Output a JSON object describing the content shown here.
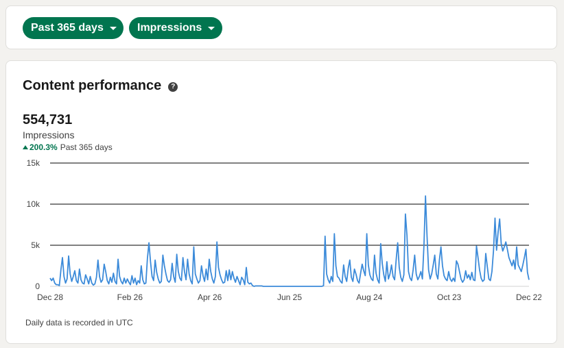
{
  "filters": {
    "range_label": "Past 365 days",
    "metric_label": "Impressions"
  },
  "card": {
    "title": "Content performance",
    "help_icon": "question-circle-icon",
    "total": "554,731",
    "metric": "Impressions",
    "change_pct": "200.3%",
    "change_period": "Past 365 days",
    "footnote": "Daily data is recorded in UTC"
  },
  "colors": {
    "accent": "#01754f",
    "line": "#3b8ad9",
    "grid": "#000000"
  },
  "chart_data": {
    "type": "line",
    "title": "",
    "xlabel": "",
    "ylabel": "",
    "ylim": [
      0,
      15000
    ],
    "yticks": [
      0,
      5000,
      10000,
      15000
    ],
    "ytick_labels": [
      "0",
      "5k",
      "10k",
      "15k"
    ],
    "xtick_labels": [
      "Dec 28",
      "Feb 26",
      "Apr 26",
      "Jun 25",
      "Aug 24",
      "Oct 23",
      "Dec 22"
    ],
    "grid": true,
    "series": [
      {
        "values": [
          1000,
          700,
          1000,
          400,
          200,
          200,
          100,
          2000,
          3500,
          1200,
          400,
          900,
          3700,
          1500,
          600,
          1200,
          1900,
          700,
          400,
          2100,
          800,
          400,
          300,
          1400,
          900,
          300,
          1200,
          400,
          150,
          300,
          1100,
          3200,
          1200,
          500,
          800,
          2700,
          1800,
          700,
          300,
          1100,
          500,
          1600,
          600,
          300,
          3300,
          1200,
          600,
          300,
          1000,
          400,
          900,
          500,
          200,
          1300,
          400,
          1000,
          200,
          700,
          400,
          2500,
          800,
          300,
          400,
          3400,
          5300,
          3000,
          1200,
          700,
          3200,
          1700,
          900,
          400,
          600,
          3800,
          2500,
          1500,
          700,
          500,
          800,
          2800,
          1200,
          500,
          3900,
          1800,
          1000,
          700,
          3500,
          1800,
          800,
          3300,
          1500,
          700,
          300,
          4800,
          1500,
          900,
          400,
          700,
          2500,
          1300,
          600,
          2100,
          800,
          3300,
          1800,
          900,
          400,
          1200,
          5400,
          2300,
          1400,
          800,
          400,
          500,
          1900,
          700,
          2000,
          800,
          1800,
          1000,
          500,
          1200,
          700,
          200,
          1100,
          800,
          200,
          2300,
          500,
          300,
          400,
          100,
          0,
          50,
          50,
          50,
          50,
          50,
          0,
          0,
          0,
          0,
          0,
          0,
          0,
          0,
          0,
          0,
          0,
          0,
          0,
          0,
          0,
          0,
          0,
          0,
          0,
          0,
          0,
          0,
          0,
          0,
          0,
          0,
          0,
          0,
          0,
          0,
          0,
          0,
          0,
          0,
          0,
          0,
          0,
          0,
          0,
          100,
          6100,
          1500,
          800,
          400,
          1200,
          600,
          6400,
          2500,
          1200,
          1000,
          600,
          400,
          2600,
          1200,
          600,
          2200,
          3200,
          1100,
          600,
          2100,
          1500,
          700,
          400,
          1600,
          2700,
          1900,
          1300,
          6400,
          2600,
          1400,
          900,
          700,
          3800,
          1600,
          800,
          400,
          5200,
          2800,
          1400,
          600,
          3000,
          900,
          1500,
          2600,
          1200,
          800,
          3200,
          5300,
          2300,
          1100,
          600,
          1400,
          8800,
          6200,
          1800,
          1000,
          700,
          2000,
          3800,
          1500,
          800,
          1200,
          1800,
          900,
          5000,
          11000,
          6100,
          2000,
          900,
          1500,
          2600,
          3800,
          1500,
          900,
          3200,
          4800,
          2500,
          1300,
          900,
          700,
          1800,
          900,
          600,
          1000,
          600,
          3100,
          2700,
          1800,
          900,
          500,
          800,
          1900,
          1000,
          1400,
          800,
          1700,
          800,
          700,
          4900,
          3500,
          2000,
          1000,
          600,
          800,
          4000,
          2400,
          900,
          700,
          1800,
          4300,
          8300,
          4400,
          6600,
          8200,
          5200,
          4300,
          4800,
          5400,
          4500,
          3500,
          3000,
          2500,
          3200,
          2100,
          4800,
          2600,
          2200,
          1800,
          2600,
          3500,
          4500,
          1700,
          800
        ]
      }
    ]
  }
}
